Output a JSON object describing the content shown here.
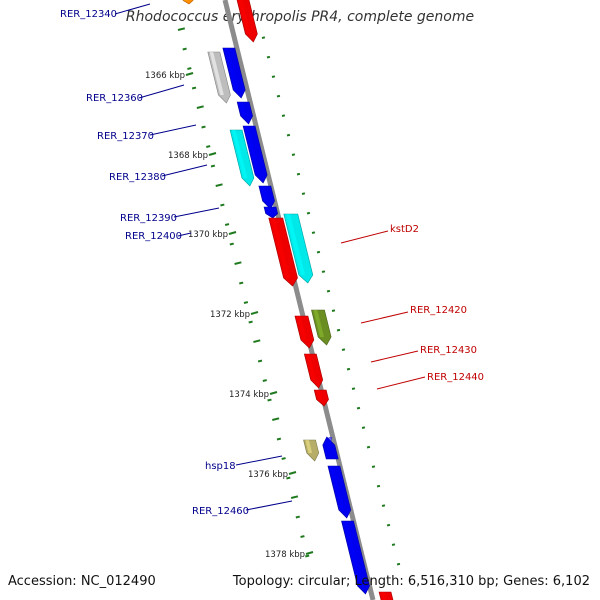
{
  "title": "Rhodococcus erythropolis PR4, complete genome",
  "footer": {
    "accession": "Accession: NC_012490",
    "summary": "Topology: circular; Length: 6,516,310 bp; Genes: 6,102"
  },
  "colors": {
    "backbone": "#8c8c8c",
    "ticks": "#1f7a1f",
    "label_left": "#00008b",
    "label_right": "#c00000",
    "blue": "#0000ee",
    "red": "#ee0000",
    "cyan": "#00e8e8",
    "grey": "#bdbdbd",
    "olive": "#6b8e23",
    "khaki": "#b5ad68",
    "orange": "#ff8c00"
  },
  "kbp_labels": [
    "1366 kbp",
    "1368 kbp",
    "1370 kbp",
    "1372 kbp",
    "1374 kbp",
    "1376 kbp",
    "1378 kbp"
  ],
  "genes": [
    {
      "label": "RER_12340",
      "color": "orange",
      "strand": "inner"
    },
    {
      "label": "",
      "color": "red",
      "strand": "outer"
    },
    {
      "label": "",
      "color": "grey",
      "strand": "inner"
    },
    {
      "label": "RER_12360",
      "color": "blue",
      "strand": "inner"
    },
    {
      "label": "RER_12370",
      "color": "blue",
      "strand": "inner"
    },
    {
      "label": "",
      "color": "cyan",
      "strand": "inner"
    },
    {
      "label": "RER_12380",
      "color": "blue",
      "strand": "inner"
    },
    {
      "label": "RER_12390",
      "color": "blue",
      "strand": "inner"
    },
    {
      "label": "RER_12400",
      "color": "blue",
      "strand": "inner"
    },
    {
      "label": "",
      "color": "red",
      "strand": "outer"
    },
    {
      "label": "kstD2",
      "color": "cyan",
      "strand": "outer"
    },
    {
      "label": "RER_12420",
      "color": "red",
      "strand": "outer"
    },
    {
      "label": "",
      "color": "olive",
      "strand": "outer"
    },
    {
      "label": "RER_12430",
      "color": "red",
      "strand": "outer"
    },
    {
      "label": "RER_12440",
      "color": "red",
      "strand": "outer"
    },
    {
      "label": "",
      "color": "khaki",
      "strand": "inner"
    },
    {
      "label": "hsp18",
      "color": "blue",
      "strand": "inner"
    },
    {
      "label": "RER_12460",
      "color": "blue",
      "strand": "inner"
    },
    {
      "label": "",
      "color": "blue",
      "strand": "inner"
    },
    {
      "label": "",
      "color": "red",
      "strand": "outer"
    }
  ]
}
